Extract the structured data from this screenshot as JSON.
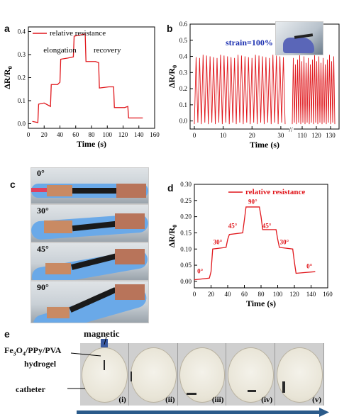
{
  "panels": {
    "a": "a",
    "b": "b",
    "c": "c",
    "d": "d",
    "e": "e"
  },
  "chart_data": [
    {
      "id": "a",
      "type": "line",
      "title": "",
      "xlabel": "Time (s)",
      "ylabel": "ΔR/R0",
      "xlim": [
        0,
        160
      ],
      "ylim": [
        -0.02,
        0.42
      ],
      "xticks": [
        "0",
        "20",
        "40",
        "60",
        "80",
        "100",
        "120",
        "140",
        "160"
      ],
      "yticks": [
        "0.0",
        "0.1",
        "0.2",
        "0.3",
        "0.4"
      ],
      "grid": false,
      "legend_position": "top-left",
      "series": [
        {
          "name": "relative resistance",
          "color": "#e0161b",
          "x": [
            5,
            12,
            13,
            20,
            28,
            29,
            37,
            40,
            41,
            50,
            57,
            58,
            66,
            72,
            73,
            85,
            89,
            90,
            102,
            108,
            109,
            122,
            126,
            127,
            140,
            145
          ],
          "y": [
            0.01,
            0.005,
            0.085,
            0.09,
            0.075,
            0.17,
            0.17,
            0.18,
            0.28,
            0.285,
            0.29,
            0.38,
            0.385,
            0.39,
            0.27,
            0.27,
            0.265,
            0.155,
            0.16,
            0.16,
            0.07,
            0.07,
            0.075,
            0.025,
            0.025,
            0.025
          ]
        }
      ],
      "annotations": [
        {
          "text": "elongation",
          "x": 40,
          "y": 0.31
        },
        {
          "text": "recovery",
          "x": 100,
          "y": 0.31
        }
      ]
    },
    {
      "id": "b",
      "type": "line",
      "title": "",
      "xlabel": "Time (s)",
      "ylabel": "ΔR/R0",
      "ylim": [
        -0.05,
        0.6
      ],
      "xticks": [
        "0",
        "10",
        "20",
        "30",
        "110",
        "120",
        "130"
      ],
      "yticks": [
        "0.0",
        "0.1",
        "0.2",
        "0.3",
        "0.4",
        "0.5",
        "0.6"
      ],
      "grid": false,
      "axis_break": true,
      "annotation": "strain=100%",
      "series": [
        {
          "name": "",
          "color": "#e0161b",
          "cycles_left": 26,
          "cycles_right": 20,
          "peak": 0.41,
          "trough": -0.02
        }
      ]
    },
    {
      "id": "d",
      "type": "line",
      "title": "",
      "xlabel": "Time (s)",
      "ylabel": "ΔR/R0",
      "xlim": [
        0,
        160
      ],
      "ylim": [
        -0.02,
        0.3
      ],
      "xticks": [
        "0",
        "20",
        "40",
        "60",
        "80",
        "100",
        "120",
        "140",
        "160"
      ],
      "yticks": [
        "0.00",
        "0.05",
        "0.10",
        "0.15",
        "0.20",
        "0.25",
        "0.30"
      ],
      "grid": false,
      "legend_position": "top-right",
      "series": [
        {
          "name": "relative resistance",
          "color": "#e0161b",
          "x": [
            0,
            18,
            20,
            22,
            38,
            40,
            42,
            58,
            60,
            62,
            78,
            80,
            82,
            98,
            100,
            102,
            118,
            120,
            122,
            145
          ],
          "y": [
            0.005,
            0.01,
            0.03,
            0.1,
            0.105,
            0.13,
            0.145,
            0.15,
            0.19,
            0.23,
            0.23,
            0.2,
            0.16,
            0.16,
            0.13,
            0.105,
            0.1,
            0.06,
            0.025,
            0.03
          ]
        }
      ],
      "annotations": [
        {
          "text": "0°",
          "x": 7,
          "y": 0.025
        },
        {
          "text": "30°",
          "x": 28,
          "y": 0.115
        },
        {
          "text": "45°",
          "x": 46,
          "y": 0.165
        },
        {
          "text": "90°",
          "x": 70,
          "y": 0.24
        },
        {
          "text": "45°",
          "x": 87,
          "y": 0.165
        },
        {
          "text": "30°",
          "x": 108,
          "y": 0.115
        },
        {
          "text": "0°",
          "x": 138,
          "y": 0.04
        }
      ]
    }
  ],
  "photos_c": {
    "angles": [
      "0°",
      "30°",
      "45°",
      "90°"
    ]
  },
  "photos_e": {
    "labels": {
      "magnetic": "magnetic",
      "hydrogel": "Fe3O4/PPy/PVA hydrogel",
      "catheter": "catheter"
    },
    "hydrogel_line1": "Fe",
    "hydrogel_sub1": "3",
    "hydrogel_mid": "O",
    "hydrogel_sub2": "4",
    "hydrogel_rest": "/PPy/PVA",
    "hydrogel_line2": "hydrogel",
    "dishes": [
      "(i)",
      "(ii)",
      "(iii)",
      "(iv)",
      "(v)"
    ]
  },
  "colors": {
    "series": "#e0161b",
    "annot_b": "#1a2fb0",
    "arrow": "#2a5a8a"
  }
}
